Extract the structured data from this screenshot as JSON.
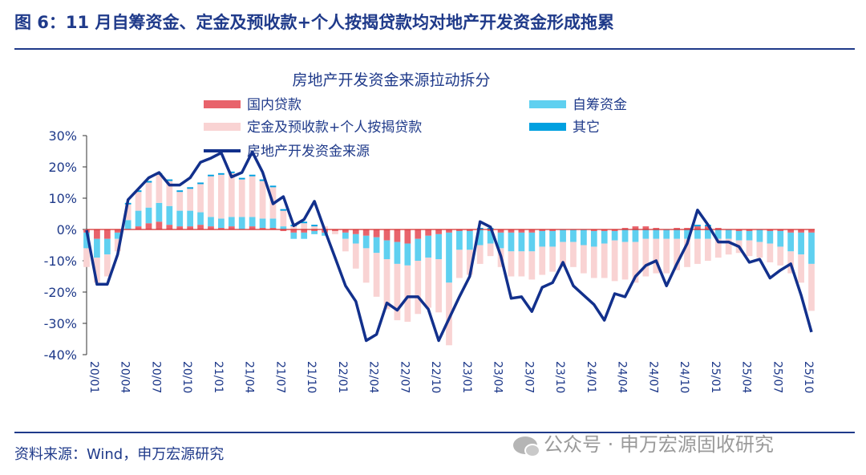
{
  "figure_title": "图 6：11 月自筹资金、定金及预收款+个人按揭贷款均对地产开发资金形成拖累",
  "source_note": "资料来源：Wind，申万宏源研究",
  "watermark": "公众号 · 申万宏源固收研究",
  "chart_data": {
    "type": "bar",
    "stacked": true,
    "title": "房地产开发资金来源拉动拆分",
    "ylim": [
      -0.4,
      0.3
    ],
    "yticks": [
      0.3,
      0.2,
      0.1,
      0.0,
      -0.1,
      -0.2,
      -0.3,
      -0.4
    ],
    "ytick_labels": [
      "30%",
      "20%",
      "10%",
      "0%",
      "-10%",
      "-20%",
      "-30%",
      "-40%"
    ],
    "xtick_labels": [
      "20/01",
      "20/04",
      "20/07",
      "20/10",
      "21/01",
      "21/04",
      "21/07",
      "21/10",
      "22/01",
      "22/04",
      "22/07",
      "22/10",
      "23/01",
      "23/04",
      "23/07",
      "23/10",
      "24/01",
      "24/04",
      "24/07",
      "24/10",
      "25/01",
      "25/04",
      "25/07",
      "25/10"
    ],
    "xtick_step": 3,
    "legend_position": "top",
    "colors": {
      "domestic_loans": "#e8636b",
      "self_raised": "#5fd0f0",
      "deposits_mortgage": "#f9d3d3",
      "other": "#00a0e0",
      "total_line": "#12308c"
    },
    "x": [
      "20/01",
      "20/02",
      "20/03",
      "20/04",
      "20/05",
      "20/06",
      "20/07",
      "20/08",
      "20/09",
      "20/10",
      "20/11",
      "20/12",
      "21/01",
      "21/02",
      "21/03",
      "21/04",
      "21/05",
      "21/06",
      "21/07",
      "21/08",
      "21/09",
      "21/10",
      "21/11",
      "21/12",
      "22/01",
      "22/02",
      "22/03",
      "22/04",
      "22/05",
      "22/06",
      "22/07",
      "22/08",
      "22/09",
      "22/10",
      "22/11",
      "22/12",
      "23/01",
      "23/02",
      "23/03",
      "23/04",
      "23/05",
      "23/06",
      "23/07",
      "23/08",
      "23/09",
      "23/10",
      "23/11",
      "23/12",
      "24/01",
      "24/02",
      "24/03",
      "24/04",
      "24/05",
      "24/06",
      "24/07",
      "24/08",
      "24/09",
      "24/10",
      "24/11",
      "24/12",
      "25/01",
      "25/02",
      "25/03",
      "25/04",
      "25/05",
      "25/06",
      "25/07",
      "25/08",
      "25/09",
      "25/10",
      "25/11"
    ],
    "series": [
      {
        "name": "国内贷款",
        "key": "domestic_loans",
        "kind": "bar",
        "values": [
          -0.01,
          -0.03,
          -0.03,
          -0.01,
          0.0,
          0.01,
          0.02,
          0.025,
          0.015,
          0.01,
          0.01,
          0.015,
          0.01,
          0.005,
          0.01,
          0.0,
          0.01,
          0.005,
          0.005,
          -0.005,
          -0.01,
          -0.01,
          -0.005,
          -0.01,
          -0.005,
          -0.01,
          -0.015,
          -0.02,
          -0.025,
          -0.035,
          -0.04,
          -0.045,
          -0.03,
          -0.02,
          -0.015,
          -0.01,
          -0.005,
          -0.005,
          0.0,
          -0.005,
          -0.01,
          -0.01,
          -0.01,
          -0.01,
          -0.005,
          -0.005,
          0.0,
          0.0,
          0.0,
          -0.005,
          -0.005,
          -0.005,
          0.005,
          0.01,
          0.01,
          0.005,
          0.0,
          0.005,
          0.005,
          0.01,
          0.01,
          0.005,
          0.0,
          -0.005,
          -0.005,
          0.0,
          -0.005,
          -0.005,
          -0.01,
          -0.01,
          -0.01
        ]
      },
      {
        "name": "自筹资金",
        "key": "self_raised",
        "kind": "bar",
        "values": [
          -0.05,
          -0.06,
          -0.05,
          -0.02,
          0.03,
          0.05,
          0.05,
          0.06,
          0.06,
          0.05,
          0.05,
          0.04,
          0.03,
          0.03,
          0.03,
          0.04,
          0.03,
          0.03,
          0.03,
          0.01,
          -0.02,
          -0.02,
          -0.01,
          -0.01,
          0.0,
          -0.02,
          -0.03,
          -0.04,
          -0.05,
          -0.06,
          -0.07,
          -0.07,
          -0.07,
          -0.07,
          -0.08,
          -0.16,
          -0.06,
          -0.06,
          -0.05,
          -0.04,
          -0.05,
          -0.06,
          -0.06,
          -0.06,
          -0.05,
          -0.05,
          -0.04,
          -0.04,
          -0.05,
          -0.05,
          -0.04,
          -0.03,
          -0.04,
          -0.04,
          -0.03,
          -0.03,
          -0.03,
          -0.03,
          -0.03,
          -0.03,
          -0.03,
          -0.03,
          -0.03,
          -0.03,
          -0.03,
          -0.04,
          -0.04,
          -0.05,
          -0.06,
          -0.07,
          -0.1
        ]
      },
      {
        "name": "定金及预收款+个人按揭贷款",
        "key": "deposits_mortgage",
        "kind": "bar",
        "values": [
          -0.06,
          -0.08,
          -0.07,
          -0.04,
          0.05,
          0.06,
          0.08,
          0.09,
          0.08,
          0.06,
          0.07,
          0.09,
          0.13,
          0.14,
          0.14,
          0.12,
          0.13,
          0.12,
          0.1,
          0.05,
          0.01,
          0.02,
          0.01,
          0.01,
          -0.01,
          -0.04,
          -0.08,
          -0.11,
          -0.14,
          -0.16,
          -0.18,
          -0.18,
          -0.17,
          -0.16,
          -0.17,
          -0.2,
          -0.09,
          -0.08,
          -0.06,
          -0.04,
          -0.06,
          -0.08,
          -0.08,
          -0.09,
          -0.09,
          -0.08,
          -0.08,
          -0.08,
          -0.09,
          -0.1,
          -0.11,
          -0.13,
          -0.12,
          -0.13,
          -0.12,
          -0.11,
          -0.11,
          -0.1,
          -0.09,
          -0.08,
          -0.07,
          -0.06,
          -0.05,
          -0.04,
          -0.05,
          -0.05,
          -0.06,
          -0.06,
          -0.07,
          -0.09,
          -0.15
        ]
      },
      {
        "name": "其它",
        "key": "other",
        "kind": "bar",
        "values": [
          0.0,
          0.0,
          0.0,
          0.0,
          0.005,
          0.005,
          0.005,
          0.005,
          0.005,
          0.005,
          0.005,
          0.005,
          0.005,
          0.005,
          0.005,
          0.005,
          0.005,
          0.005,
          0.005,
          0.005,
          0.005,
          0.005,
          0.005,
          0.0,
          0.0,
          0.0,
          0.0,
          0.0,
          0.0,
          0.0,
          0.0,
          0.0,
          0.0,
          0.0,
          0.0,
          0.0,
          0.0,
          0.0,
          0.005,
          0.005,
          0.0,
          0.0,
          0.0,
          0.0,
          0.0,
          0.0,
          0.0,
          0.0,
          0.0,
          0.0,
          0.0,
          0.0,
          0.0,
          0.0,
          0.0,
          0.0,
          0.0,
          0.0,
          0.0,
          0.005,
          0.005,
          0.0,
          0.0,
          0.0,
          0.0,
          0.0,
          0.0,
          0.0,
          0.0,
          0.0,
          0.0
        ]
      },
      {
        "name": "房地产开发资金来源",
        "key": "total_line",
        "kind": "line",
        "values": [
          -0.002,
          -0.175,
          -0.175,
          -0.08,
          0.095,
          0.13,
          0.165,
          0.182,
          0.142,
          0.142,
          0.165,
          0.215,
          0.228,
          0.245,
          0.168,
          0.182,
          0.248,
          0.183,
          0.082,
          0.105,
          0.012,
          0.032,
          0.09,
          -0.002,
          -0.09,
          -0.18,
          -0.23,
          -0.355,
          -0.335,
          -0.235,
          -0.258,
          -0.215,
          -0.215,
          -0.255,
          -0.355,
          -0.285,
          -0.215,
          -0.15,
          0.025,
          0.008,
          -0.085,
          -0.22,
          -0.215,
          -0.262,
          -0.185,
          -0.17,
          -0.105,
          -0.18,
          -0.21,
          -0.24,
          -0.29,
          -0.205,
          -0.215,
          -0.15,
          -0.115,
          -0.1,
          -0.18,
          -0.11,
          -0.045,
          0.062,
          0.015,
          -0.04,
          -0.04,
          -0.055,
          -0.105,
          -0.095,
          -0.155,
          -0.13,
          -0.11,
          -0.21,
          -0.328
        ]
      }
    ]
  }
}
